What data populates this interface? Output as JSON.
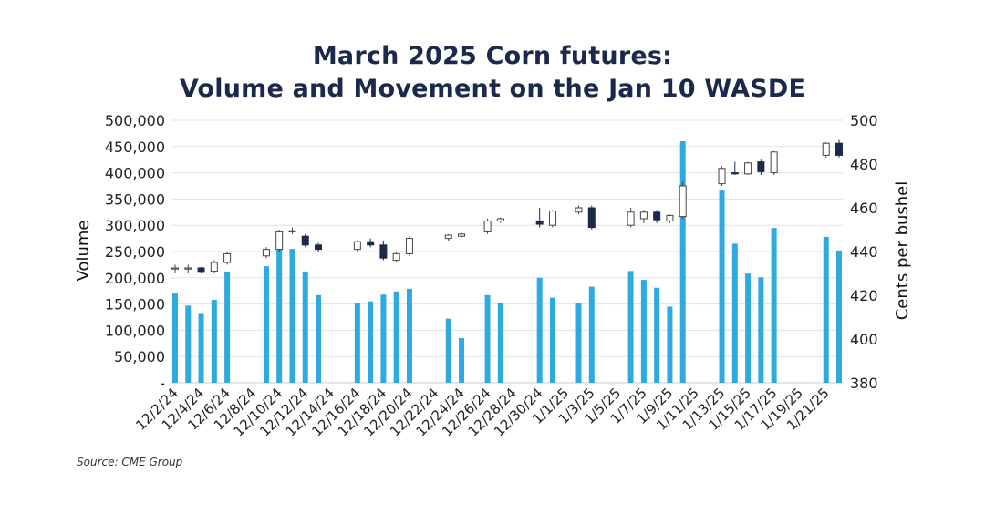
{
  "title": {
    "line1": "March 2025 Corn futures:",
    "line2": "Volume and Movement on the Jan 10 WASDE"
  },
  "source": "Source: CME Group",
  "colors": {
    "volume_bar": "#2eaae1",
    "candle_down": "#1b2a4a",
    "candle_up_fill": "#ffffff",
    "candle_outline": "#444444",
    "grid": "#e3e3e3",
    "title": "#1b2a4a"
  },
  "chart_data": {
    "type": "bar",
    "overlay": "candlestick",
    "grid": true,
    "y_left": {
      "label": "Volume",
      "range": [
        0,
        500000
      ],
      "tick_labels": [
        "-",
        "50,000",
        "100,000",
        "150,000",
        "200,000",
        "250,000",
        "300,000",
        "350,000",
        "400,000",
        "450,000",
        "500,000"
      ]
    },
    "y_right": {
      "label": "Cents per bushel",
      "range": [
        380,
        500
      ],
      "tick_labels": [
        "380",
        "400",
        "420",
        "440",
        "460",
        "480",
        "500"
      ]
    },
    "x_tick_labels": [
      "12/2/24",
      "12/4/24",
      "12/6/24",
      "12/8/24",
      "12/10/24",
      "12/12/24",
      "12/14/24",
      "12/16/24",
      "12/18/24",
      "12/20/24",
      "12/22/24",
      "12/24/24",
      "12/26/24",
      "12/28/24",
      "12/30/24",
      "1/1/25",
      "1/3/25",
      "1/5/25",
      "1/7/25",
      "1/9/25",
      "1/11/25",
      "1/13/25",
      "1/15/25",
      "1/17/25",
      "1/19/25",
      "1/21/25"
    ],
    "dates": [
      "12/2/24",
      "12/3/24",
      "12/4/24",
      "12/5/24",
      "12/6/24",
      "12/7/24",
      "12/8/24",
      "12/9/24",
      "12/10/24",
      "12/11/24",
      "12/12/24",
      "12/13/24",
      "12/14/24",
      "12/15/24",
      "12/16/24",
      "12/17/24",
      "12/18/24",
      "12/19/24",
      "12/20/24",
      "12/21/24",
      "12/22/24",
      "12/23/24",
      "12/24/24",
      "12/25/24",
      "12/26/24",
      "12/27/24",
      "12/28/24",
      "12/29/24",
      "12/30/24",
      "12/31/24",
      "1/1/25",
      "1/2/25",
      "1/3/25",
      "1/4/25",
      "1/5/25",
      "1/6/25",
      "1/7/25",
      "1/8/25",
      "1/9/25",
      "1/10/25",
      "1/11/25",
      "1/12/25",
      "1/13/25",
      "1/14/25",
      "1/15/25",
      "1/16/25",
      "1/17/25",
      "1/18/25",
      "1/19/25",
      "1/20/25",
      "1/21/25",
      "1/22/25"
    ],
    "sessions": [
      {
        "date": "12/2/24",
        "volume": 170000,
        "open": 432,
        "high": 434,
        "low": 430,
        "close": 432.5
      },
      {
        "date": "12/3/24",
        "volume": 147000,
        "open": 432,
        "high": 434,
        "low": 430,
        "close": 432.5
      },
      {
        "date": "12/4/24",
        "volume": 133000,
        "open": 432.5,
        "high": 433,
        "low": 430,
        "close": 430.5
      },
      {
        "date": "12/5/24",
        "volume": 158000,
        "open": 431,
        "high": 436,
        "low": 430,
        "close": 435
      },
      {
        "date": "12/6/24",
        "volume": 212000,
        "open": 435,
        "high": 440,
        "low": 434,
        "close": 439
      },
      {
        "date": "12/9/24",
        "volume": 222000,
        "open": 438,
        "high": 442,
        "low": 437,
        "close": 441
      },
      {
        "date": "12/10/24",
        "volume": 262000,
        "open": 441,
        "high": 450,
        "low": 440,
        "close": 449
      },
      {
        "date": "12/11/24",
        "volume": 255000,
        "open": 449,
        "high": 451,
        "low": 448,
        "close": 449.5
      },
      {
        "date": "12/12/24",
        "volume": 212000,
        "open": 447,
        "high": 448,
        "low": 442,
        "close": 443
      },
      {
        "date": "12/13/24",
        "volume": 167000,
        "open": 443,
        "high": 444,
        "low": 440,
        "close": 441
      },
      {
        "date": "12/16/24",
        "volume": 151000,
        "open": 441,
        "high": 445,
        "low": 440,
        "close": 444.5
      },
      {
        "date": "12/17/24",
        "volume": 155000,
        "open": 444.5,
        "high": 446,
        "low": 442,
        "close": 443
      },
      {
        "date": "12/18/24",
        "volume": 168000,
        "open": 443,
        "high": 445,
        "low": 436,
        "close": 437
      },
      {
        "date": "12/19/24",
        "volume": 174000,
        "open": 436,
        "high": 440,
        "low": 435,
        "close": 439
      },
      {
        "date": "12/20/24",
        "volume": 179000,
        "open": 439,
        "high": 447,
        "low": 438,
        "close": 446
      },
      {
        "date": "12/23/24",
        "volume": 122000,
        "open": 446,
        "high": 448,
        "low": 445,
        "close": 447.5
      },
      {
        "date": "12/24/24",
        "volume": 85000,
        "open": 447,
        "high": 448.5,
        "low": 446.5,
        "close": 448
      },
      {
        "date": "12/26/24",
        "volume": 167000,
        "open": 449,
        "high": 455,
        "low": 448,
        "close": 454
      },
      {
        "date": "12/27/24",
        "volume": 153000,
        "open": 454,
        "high": 455.5,
        "low": 453,
        "close": 455
      },
      {
        "date": "12/30/24",
        "volume": 200000,
        "open": 454,
        "high": 460,
        "low": 451,
        "close": 452.5
      },
      {
        "date": "12/31/24",
        "volume": 162000,
        "open": 452,
        "high": 459,
        "low": 451,
        "close": 458.5
      },
      {
        "date": "1/2/25",
        "volume": 151000,
        "open": 458,
        "high": 461,
        "low": 457,
        "close": 460
      },
      {
        "date": "1/3/25",
        "volume": 183000,
        "open": 460,
        "high": 461,
        "low": 450,
        "close": 451
      },
      {
        "date": "1/6/25",
        "volume": 213000,
        "open": 452,
        "high": 460,
        "low": 451,
        "close": 458
      },
      {
        "date": "1/7/25",
        "volume": 196000,
        "open": 455,
        "high": 459,
        "low": 453,
        "close": 458
      },
      {
        "date": "1/8/25",
        "volume": 181000,
        "open": 458,
        "high": 459,
        "low": 453,
        "close": 454.5
      },
      {
        "date": "1/9/25",
        "volume": 145000,
        "open": 454,
        "high": 457,
        "low": 453,
        "close": 456.5
      },
      {
        "date": "1/10/25",
        "volume": 460000,
        "open": 456,
        "high": 472,
        "low": 455,
        "close": 470
      },
      {
        "date": "1/13/25",
        "volume": 366000,
        "open": 471,
        "high": 479,
        "low": 470,
        "close": 478
      },
      {
        "date": "1/14/25",
        "volume": 265000,
        "open": 476,
        "high": 481,
        "low": 475,
        "close": 475.5
      },
      {
        "date": "1/15/25",
        "volume": 208000,
        "open": 475.5,
        "high": 481,
        "low": 475,
        "close": 480.5
      },
      {
        "date": "1/16/25",
        "volume": 201000,
        "open": 481,
        "high": 482,
        "low": 475,
        "close": 476.5
      },
      {
        "date": "1/17/25",
        "volume": 295000,
        "open": 476,
        "high": 486,
        "low": 475,
        "close": 485.5
      },
      {
        "date": "1/21/25",
        "volume": 278000,
        "open": 484,
        "high": 490,
        "low": 483,
        "close": 489.5
      },
      {
        "date": "1/22/25",
        "volume": 252000,
        "open": 489.5,
        "high": 491,
        "low": 483,
        "close": 484
      }
    ]
  }
}
